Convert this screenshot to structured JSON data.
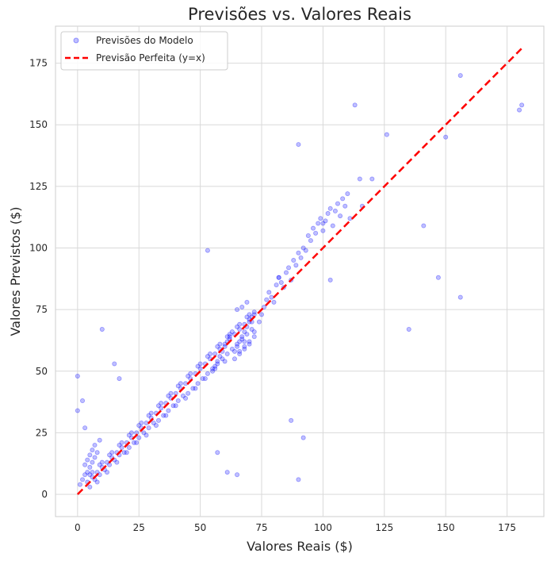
{
  "chart_data": {
    "type": "scatter",
    "title": "Previsões vs. Valores Reais",
    "xlabel": "Valores Reais ($)",
    "ylabel": "Valores Previstos ($)",
    "xlim": [
      -9,
      190
    ],
    "ylim": [
      -9,
      190
    ],
    "x_ticks": [
      0,
      25,
      50,
      75,
      100,
      125,
      150,
      175
    ],
    "y_ticks": [
      0,
      25,
      50,
      75,
      100,
      125,
      150,
      175
    ],
    "grid": true,
    "legend_position": "top-left",
    "series": [
      {
        "name": "Previsões do Modelo",
        "kind": "scatter",
        "color": "#0000ff",
        "alpha": 0.25,
        "x": [
          4,
          6,
          8,
          10,
          12,
          14,
          16,
          18,
          20,
          22,
          24,
          26,
          28,
          30,
          32,
          34,
          36,
          38,
          40,
          42,
          44,
          46,
          48,
          50,
          52,
          54,
          56,
          58,
          60,
          62,
          64,
          66,
          68,
          70,
          72,
          5,
          7,
          9,
          11,
          13,
          15,
          17,
          19,
          21,
          23,
          25,
          27,
          29,
          31,
          33,
          35,
          37,
          39,
          41,
          43,
          45,
          47,
          49,
          51,
          53,
          55,
          57,
          59,
          61,
          63,
          65,
          67,
          69,
          71,
          6,
          10,
          14,
          18,
          22,
          26,
          30,
          34,
          38,
          42,
          46,
          50,
          54,
          58,
          62,
          66,
          70,
          8,
          12,
          16,
          20,
          24,
          28,
          32,
          36,
          40,
          44,
          48,
          52,
          56,
          60,
          64,
          68,
          72,
          5,
          9,
          13,
          17,
          21,
          25,
          29,
          33,
          37,
          41,
          45,
          49,
          53,
          57,
          61,
          65,
          69,
          65,
          66,
          67,
          68,
          69,
          70,
          71,
          72,
          65,
          67,
          69,
          71,
          66,
          68,
          70,
          72,
          64,
          66,
          68,
          70,
          55,
          56,
          57,
          58,
          59,
          60,
          61,
          62,
          63,
          74,
          75,
          76,
          77,
          78,
          79,
          80,
          81,
          82,
          83,
          84,
          85,
          86,
          87,
          88,
          89,
          90,
          91,
          92,
          93,
          94,
          95,
          96,
          97,
          98,
          99,
          100,
          101,
          102,
          103,
          104,
          105,
          106,
          107,
          108,
          109,
          110,
          0,
          0,
          2,
          3,
          10,
          15,
          17,
          53,
          57,
          61,
          65,
          82,
          87,
          90,
          90,
          92,
          113,
          115,
          116,
          120,
          126,
          135,
          141,
          147,
          150,
          156,
          156,
          180,
          181,
          111,
          100,
          103,
          1,
          2,
          3,
          4,
          5,
          6,
          7,
          8,
          3,
          4,
          5,
          6,
          7,
          9
        ],
        "y": [
          5,
          7,
          9,
          11,
          13,
          15,
          17,
          19,
          21,
          23,
          25,
          27,
          29,
          31,
          33,
          35,
          37,
          39,
          41,
          43,
          45,
          47,
          49,
          51,
          53,
          55,
          57,
          59,
          61,
          63,
          65,
          67,
          69,
          71,
          73,
          3,
          6,
          8,
          10,
          12,
          14,
          16,
          17,
          19,
          21,
          23,
          25,
          27,
          29,
          30,
          32,
          34,
          36,
          38,
          40,
          41,
          43,
          45,
          47,
          49,
          51,
          53,
          55,
          57,
          59,
          61,
          63,
          65,
          67,
          9,
          13,
          17,
          21,
          25,
          29,
          33,
          37,
          41,
          45,
          49,
          53,
          57,
          61,
          65,
          69,
          73,
          5,
          9,
          13,
          17,
          21,
          24,
          28,
          32,
          36,
          39,
          43,
          47,
          51,
          54,
          58,
          62,
          66,
          8,
          12,
          16,
          20,
          24,
          28,
          32,
          36,
          40,
          44,
          48,
          52,
          56,
          60,
          64,
          68,
          72,
          60,
          62,
          64,
          66,
          68,
          70,
          72,
          74,
          75,
          76,
          78,
          70,
          58,
          60,
          62,
          64,
          55,
          57,
          59,
          61,
          50,
          52,
          54,
          56,
          58,
          60,
          62,
          64,
          66,
          70,
          73,
          76,
          79,
          82,
          80,
          78,
          85,
          88,
          86,
          84,
          90,
          92,
          87,
          95,
          93,
          98,
          96,
          100,
          99,
          105,
          103,
          108,
          106,
          110,
          112,
          107,
          111,
          114,
          116,
          109,
          115,
          118,
          113,
          120,
          117,
          122,
          48,
          34,
          38,
          27,
          67,
          53,
          47,
          99,
          17,
          9,
          8,
          88,
          30,
          142,
          6,
          23,
          158,
          128,
          117,
          128,
          146,
          67,
          109,
          88,
          145,
          80,
          170,
          156,
          158,
          112,
          110,
          87,
          4,
          6,
          8,
          9,
          11,
          13,
          15,
          17,
          12,
          14,
          16,
          18,
          20,
          22
        ]
      },
      {
        "name": "Previsão Perfeita (y=x)",
        "kind": "line",
        "style": "dashed",
        "color": "#ff0000",
        "x": [
          0,
          181
        ],
        "y": [
          0,
          181
        ]
      }
    ]
  }
}
